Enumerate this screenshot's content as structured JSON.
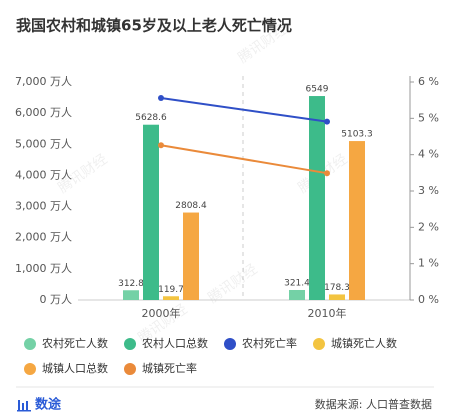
{
  "chart_data": {
    "type": "bar",
    "title": "我国农村和城镇65岁及以上老人死亡情况",
    "categories": [
      "2000年",
      "2010年"
    ],
    "series": [
      {
        "name": "农村死亡人数",
        "color": "#74d1a6",
        "values": [
          312.8,
          321.4
        ]
      },
      {
        "name": "农村人口总数",
        "color": "#3dbb8a",
        "values": [
          5628.6,
          6549
        ]
      },
      {
        "name": "农村死亡率",
        "color": "#2f4fc7",
        "values": [
          5.56,
          4.91
        ],
        "axis": "y2"
      },
      {
        "name": "城镇死亡人数",
        "color": "#f3c440",
        "values": [
          119.7,
          178.3
        ]
      },
      {
        "name": "城镇人口总数",
        "color": "#f5a742",
        "values": [
          2808.4,
          5103.3
        ]
      },
      {
        "name": "城镇死亡率",
        "color": "#ea8a3a",
        "values": [
          4.26,
          3.49
        ],
        "axis": "y2"
      }
    ],
    "ylim": [
      0,
      7000
    ],
    "yticks": [
      {
        "value": 0,
        "label": "0 万人"
      },
      {
        "value": 1000,
        "label": "1,000 万人"
      },
      {
        "value": 2000,
        "label": "2,000 万人"
      },
      {
        "value": 3000,
        "label": "3,000 万人"
      },
      {
        "value": 4000,
        "label": "4,000 万人"
      },
      {
        "value": 5000,
        "label": "5,000 万人"
      },
      {
        "value": 6000,
        "label": "6,000 万人"
      },
      {
        "value": 7000,
        "label": "7,000 万人"
      }
    ],
    "y2lim": [
      0,
      6
    ],
    "y2ticks": [
      {
        "value": 0,
        "label": "0 %"
      },
      {
        "value": 1,
        "label": "1 %"
      },
      {
        "value": 2,
        "label": "2 %"
      },
      {
        "value": 3,
        "label": "3 %"
      },
      {
        "value": 4,
        "label": "4 %"
      },
      {
        "value": 5,
        "label": "5 %"
      },
      {
        "value": 6,
        "label": "6 %"
      }
    ],
    "brand": "数途",
    "source": "数据来源: 人口普查数据",
    "watermark": "腾讯财经"
  }
}
